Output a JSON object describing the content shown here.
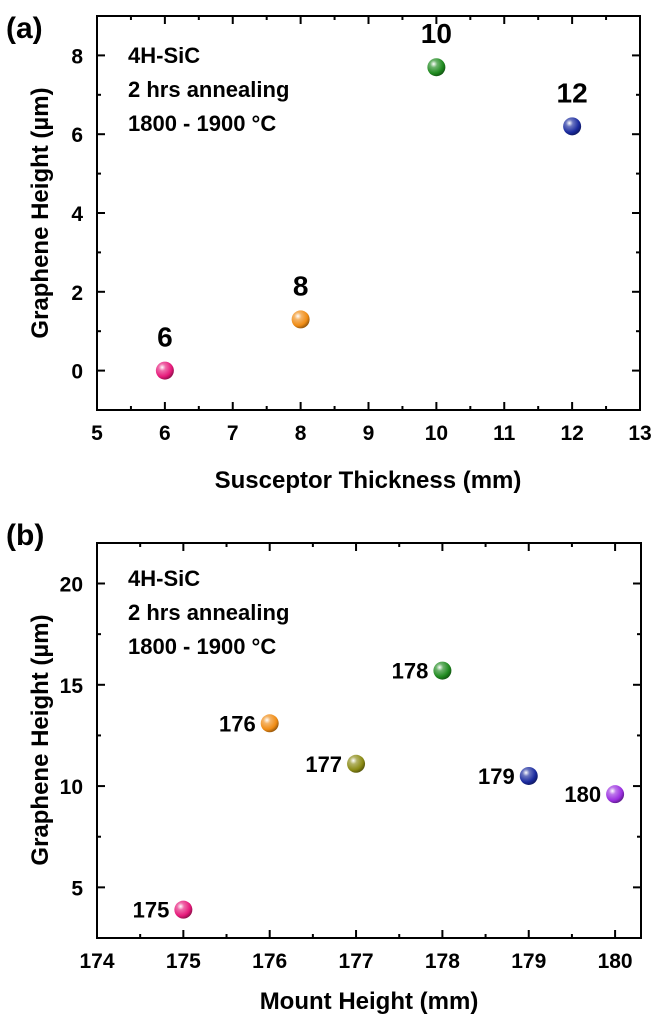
{
  "chart_data": [
    {
      "type": "scatter",
      "panel_label": "(a)",
      "annotation_lines": [
        "4H-SiC",
        "2 hrs annealing",
        "1800 - 1900 °C"
      ],
      "xlabel": "Susceptor Thickness (mm)",
      "ylabel": "Graphene Height (µm)",
      "xlim": [
        5,
        13
      ],
      "ylim": [
        -1,
        9
      ],
      "xticks": [
        5,
        6,
        7,
        8,
        9,
        10,
        11,
        12,
        13
      ],
      "yticks": [
        0,
        2,
        4,
        6,
        8
      ],
      "x_minor_step": 0.5,
      "y_minor_step": 1,
      "grid": false,
      "points": [
        {
          "x": 6,
          "y": 0.0,
          "label": "6",
          "color": "#e6197a"
        },
        {
          "x": 8,
          "y": 1.3,
          "label": "8",
          "color": "#f08c14"
        },
        {
          "x": 10,
          "y": 7.7,
          "label": "10",
          "color": "#1f8a1f"
        },
        {
          "x": 12,
          "y": 6.2,
          "label": "12",
          "color": "#1a2a9e"
        }
      ]
    },
    {
      "type": "scatter",
      "panel_label": "(b)",
      "annotation_lines": [
        "4H-SiC",
        "2 hrs annealing",
        "1800 - 1900 °C"
      ],
      "xlabel": "Mount Height (mm)",
      "ylabel": "Graphene Height (µm)",
      "xlim": [
        174,
        180.3
      ],
      "ylim": [
        2.5,
        22
      ],
      "xticks": [
        174,
        175,
        176,
        177,
        178,
        179,
        180
      ],
      "yticks": [
        5,
        10,
        15,
        20
      ],
      "x_minor_step": 0.5,
      "y_minor_step": 2.5,
      "grid": false,
      "points": [
        {
          "x": 175,
          "y": 3.9,
          "label": "175",
          "color": "#e6197a"
        },
        {
          "x": 176,
          "y": 13.1,
          "label": "176",
          "color": "#f08c14"
        },
        {
          "x": 177,
          "y": 11.1,
          "label": "177",
          "color": "#8a8a14"
        },
        {
          "x": 178,
          "y": 15.7,
          "label": "178",
          "color": "#1f8a1f"
        },
        {
          "x": 179,
          "y": 10.5,
          "label": "179",
          "color": "#1a2a9e"
        },
        {
          "x": 180,
          "y": 9.6,
          "label": "180",
          "color": "#9a2ee0"
        }
      ]
    }
  ]
}
